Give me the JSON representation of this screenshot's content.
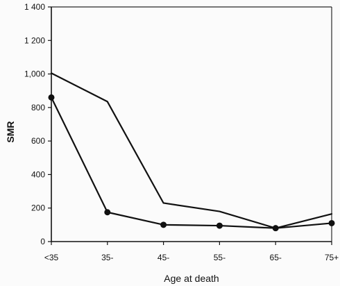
{
  "chart_data": {
    "type": "line",
    "xlabel": "Age at death",
    "ylabel": "SMR",
    "categories": [
      "<35",
      "35-",
      "45-",
      "55-",
      "65-",
      "75+"
    ],
    "y_ticks": [
      "0",
      "200",
      "400",
      "600",
      "800",
      "1,000",
      "1 200",
      "1 400"
    ],
    "y_tick_values": [
      0,
      200,
      400,
      600,
      800,
      1000,
      1200,
      1400
    ],
    "ylim": [
      0,
      1400
    ],
    "grid": false,
    "series": [
      {
        "values": [
          1005,
          835,
          230,
          180,
          80,
          165
        ],
        "markers": false
      },
      {
        "values": [
          860,
          175,
          100,
          95,
          80,
          110
        ],
        "markers": true
      }
    ],
    "colors": {
      "line": "#111111",
      "background": "#fbfbfb"
    }
  }
}
